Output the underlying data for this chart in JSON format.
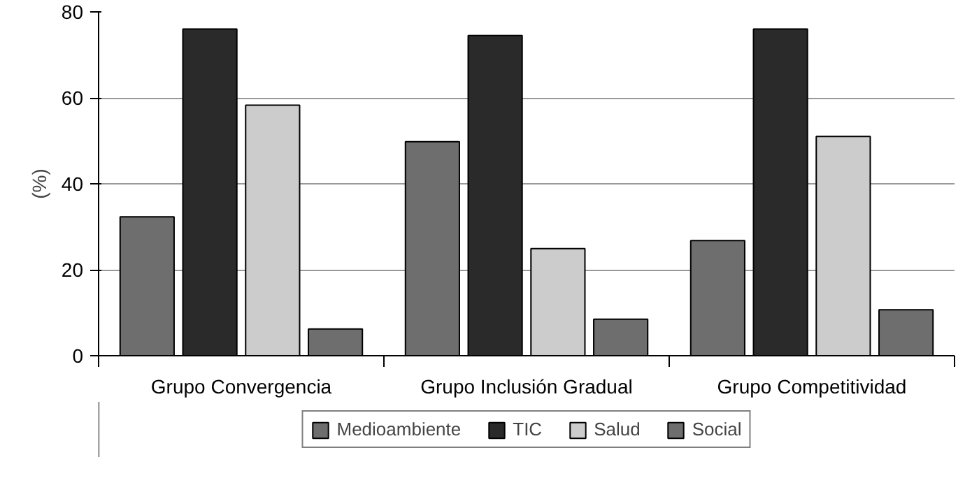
{
  "chart_data": {
    "type": "bar",
    "ylabel": "(%)",
    "categories": [
      "Grupo Convergencia",
      "Grupo Inclusión Gradual",
      "Grupo Competitividad"
    ],
    "series": [
      {
        "name": "Medioambiente",
        "color": "#6e6e6e",
        "values": [
          32.3,
          49.8,
          26.8
        ]
      },
      {
        "name": "TIC",
        "color": "#2a2a2a",
        "values": [
          76,
          74.5,
          76
        ]
      },
      {
        "name": "Salud",
        "color": "#cccccc",
        "values": [
          58.3,
          24.9,
          51
        ]
      },
      {
        "name": "Social",
        "color": "#6e6e6e",
        "values": [
          6.2,
          8.5,
          10.7
        ]
      }
    ],
    "ylim": [
      0,
      80
    ],
    "yticks": [
      0,
      20,
      40,
      60,
      80
    ],
    "grid": "y",
    "legend": "bottom"
  }
}
